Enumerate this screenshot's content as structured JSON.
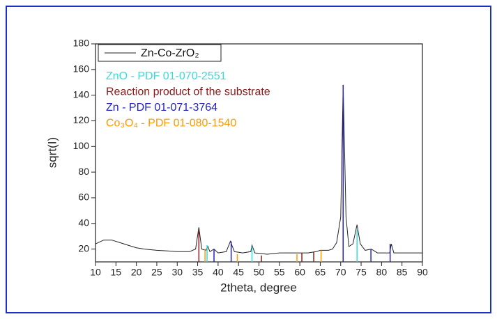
{
  "chart_data": {
    "type": "line",
    "x_label": "2theta, degree",
    "y_label": "sqrt(I)",
    "xlim": [
      10,
      90
    ],
    "ylim": [
      10,
      180
    ],
    "xticks": [
      10,
      15,
      20,
      25,
      30,
      35,
      40,
      45,
      50,
      55,
      60,
      65,
      70,
      75,
      80,
      85,
      90
    ],
    "yticks": [
      20,
      40,
      60,
      80,
      100,
      120,
      140,
      160,
      180
    ],
    "series": [
      {
        "name": "Zn-Co-ZrO₂",
        "color": "#222222",
        "x": [
          10,
          12,
          14,
          16,
          18,
          20,
          22,
          25,
          28,
          30,
          33,
          34.5,
          35.3,
          36,
          37,
          37.5,
          38,
          39,
          40,
          42,
          43,
          43.5,
          44,
          46,
          48,
          48.3,
          49,
          52,
          55,
          58,
          60,
          62,
          64,
          65,
          67,
          68,
          69,
          70,
          70.6,
          71.3,
          72,
          73,
          74,
          74.8,
          76,
          77.5,
          79,
          82,
          82.4,
          83,
          86,
          88,
          90
        ],
        "values": [
          24,
          27,
          27,
          25,
          23,
          21,
          20,
          19,
          18.5,
          18,
          18,
          20,
          37,
          20,
          19,
          22,
          18,
          20,
          17,
          18,
          26,
          22,
          18,
          17,
          18,
          23,
          17,
          16,
          17,
          17,
          17,
          17,
          18,
          19,
          19,
          20,
          25,
          45,
          148,
          45,
          22,
          24,
          39,
          24,
          19,
          20,
          17,
          17,
          24,
          17,
          17,
          17,
          17
        ]
      },
      {
        "name": "ZnO - PDF 01-070-2551",
        "color": "#33dddd",
        "style": "sticks",
        "x": [
          37.3,
          48.3,
          74.0
        ],
        "values": [
          23,
          22,
          35
        ]
      },
      {
        "name": "Reaction product of the substrate",
        "color": "#8b1a1a",
        "style": "sticks",
        "x": [
          35.3,
          50.6,
          60.5,
          63.4
        ],
        "values": [
          34,
          15,
          17,
          18
        ]
      },
      {
        "name": "Zn - PDF 01-071-3764",
        "color": "#2222bb",
        "style": "sticks",
        "x": [
          39.0,
          43.2,
          70.6,
          77.4,
          82.1
        ],
        "values": [
          20,
          26,
          148,
          20,
          24
        ]
      },
      {
        "name": "Co₃O₄ - PDF 01-080-1540",
        "color": "#ff9900",
        "style": "sticks",
        "x": [
          36.8,
          44.7,
          59.3,
          65.2
        ],
        "values": [
          20,
          16,
          16,
          19
        ]
      }
    ]
  }
}
